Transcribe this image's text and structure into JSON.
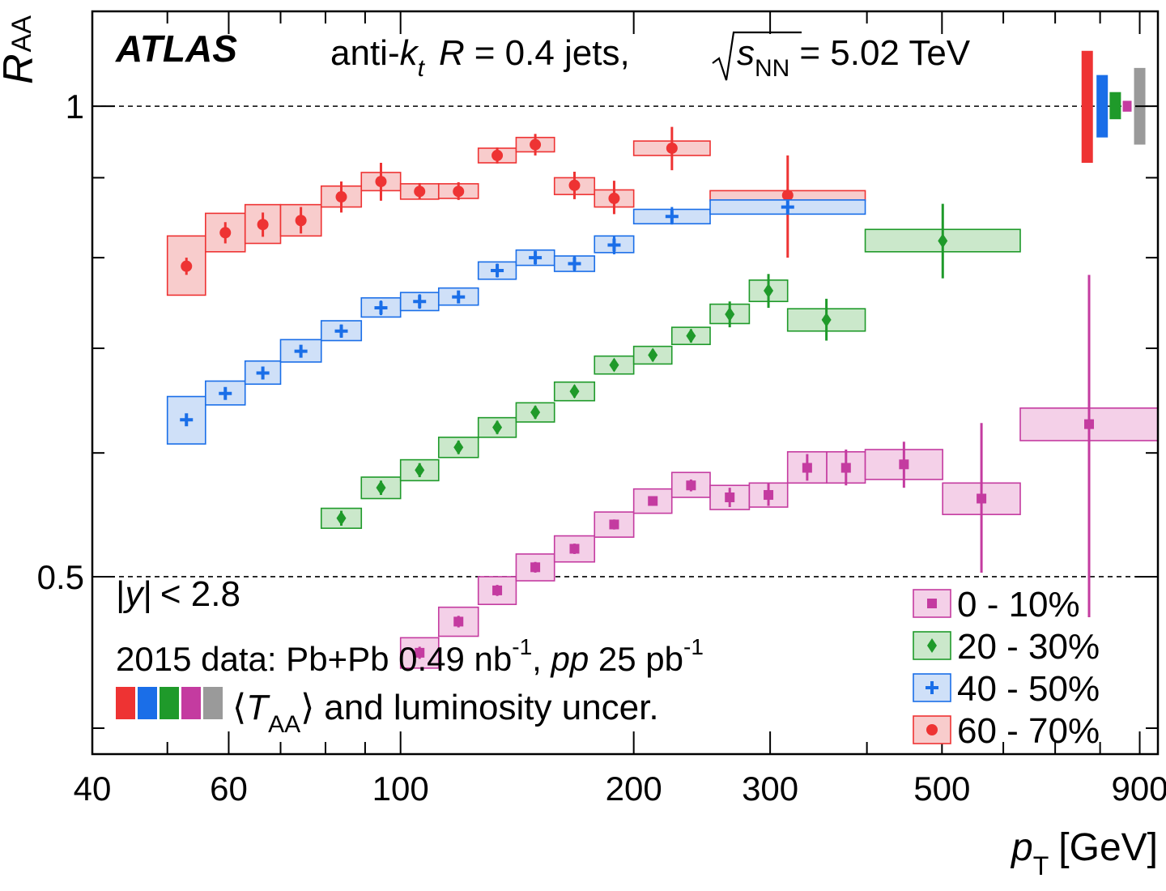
{
  "chart_data": {
    "type": "scatter",
    "x_scale": "log",
    "y_scale": "log",
    "xlim": [
      40,
      950
    ],
    "ylim": [
      0.385,
      1.15
    ],
    "x_ticks": [
      40,
      60,
      100,
      200,
      300,
      500,
      900
    ],
    "x_minor_ticks": [
      50,
      70,
      80,
      90,
      400,
      600,
      700,
      800
    ],
    "y_ticks": [
      0.5,
      1
    ],
    "y_minor_ticks": [
      0.4,
      0.6,
      0.7,
      0.8,
      0.9
    ],
    "dashed_lines_y": [
      0.5,
      1
    ],
    "grid": false,
    "xlabel": {
      "p": "p",
      "sub": "T",
      "unit": "[GeV]"
    },
    "ylabel": {
      "main": "R",
      "sub": "AA"
    },
    "title": {
      "brand": "ATLAS",
      "pre": "anti-",
      "k": "k",
      "k_sub": "t",
      "R": "R",
      "eq_r": "= 0.4 jets,",
      "s": "s",
      "s_sub": "NN",
      "energy": "= 5.02 TeV"
    },
    "annotations": {
      "rapidity": {
        "bar1": "|",
        "y": "y",
        "bar2": "|",
        "cut": "< 2.8"
      },
      "dataset": {
        "text1": "2015 data: Pb+Pb 0.49 nb",
        "sup1": "-1",
        "text2": ", ",
        "pp": "pp",
        "text3": " 25 pb",
        "sup2": "-1"
      },
      "uncertainty": {
        "open": "⟨",
        "T": "T",
        "sub": "AA",
        "close": "⟩",
        "rest": "and luminosity uncer."
      }
    },
    "legend_position": "bottom-right",
    "series": [
      {
        "name": "60 - 70%",
        "line_color": "#ee3333",
        "fill_color": "#f8cccc",
        "marker": "circle",
        "points": [
          {
            "xlo": 50,
            "xhi": 56,
            "y": 0.79,
            "syst_lo": 0.757,
            "syst_hi": 0.826,
            "stat_lo": 0.78,
            "stat_hi": 0.8
          },
          {
            "xlo": 56,
            "xhi": 63,
            "y": 0.83,
            "syst_lo": 0.807,
            "syst_hi": 0.854,
            "stat_lo": 0.817,
            "stat_hi": 0.843
          },
          {
            "xlo": 63,
            "xhi": 70,
            "y": 0.84,
            "syst_lo": 0.817,
            "syst_hi": 0.865,
            "stat_lo": 0.825,
            "stat_hi": 0.855
          },
          {
            "xlo": 70,
            "xhi": 79,
            "y": 0.845,
            "syst_lo": 0.826,
            "syst_hi": 0.865,
            "stat_lo": 0.829,
            "stat_hi": 0.862
          },
          {
            "xlo": 79,
            "xhi": 89,
            "y": 0.875,
            "syst_lo": 0.862,
            "syst_hi": 0.889,
            "stat_lo": 0.855,
            "stat_hi": 0.895
          },
          {
            "xlo": 89,
            "xhi": 100,
            "y": 0.895,
            "syst_lo": 0.883,
            "syst_hi": 0.907,
            "stat_lo": 0.87,
            "stat_hi": 0.92
          },
          {
            "xlo": 100,
            "xhi": 112,
            "y": 0.882,
            "syst_lo": 0.872,
            "syst_hi": 0.892,
            "stat_lo": 0.872,
            "stat_hi": 0.893
          },
          {
            "xlo": 112,
            "xhi": 126,
            "y": 0.882,
            "syst_lo": 0.873,
            "syst_hi": 0.892,
            "stat_lo": 0.871,
            "stat_hi": 0.894
          },
          {
            "xlo": 126,
            "xhi": 141,
            "y": 0.93,
            "syst_lo": 0.92,
            "syst_hi": 0.94,
            "stat_lo": 0.919,
            "stat_hi": 0.941
          },
          {
            "xlo": 141,
            "xhi": 158,
            "y": 0.945,
            "syst_lo": 0.935,
            "syst_hi": 0.955,
            "stat_lo": 0.93,
            "stat_hi": 0.96
          },
          {
            "xlo": 158,
            "xhi": 178,
            "y": 0.89,
            "syst_lo": 0.878,
            "syst_hi": 0.9,
            "stat_lo": 0.872,
            "stat_hi": 0.908
          },
          {
            "xlo": 178,
            "xhi": 200,
            "y": 0.873,
            "syst_lo": 0.862,
            "syst_hi": 0.884,
            "stat_lo": 0.853,
            "stat_hi": 0.896
          },
          {
            "xlo": 200,
            "xhi": 251,
            "y": 0.94,
            "syst_lo": 0.93,
            "syst_hi": 0.95,
            "stat_lo": 0.91,
            "stat_hi": 0.97
          },
          {
            "xlo": 251,
            "xhi": 398,
            "y": 0.877,
            "syst_lo": 0.87,
            "syst_hi": 0.883,
            "stat_lo": 0.8,
            "stat_hi": 0.93
          }
        ]
      },
      {
        "name": "40 - 50%",
        "line_color": "#1a6ee8",
        "fill_color": "#cfe0f8",
        "marker": "cross",
        "points": [
          {
            "xlo": 50,
            "xhi": 56,
            "y": 0.63,
            "syst_lo": 0.608,
            "syst_hi": 0.652,
            "stat_lo": 0.625,
            "stat_hi": 0.635
          },
          {
            "xlo": 56,
            "xhi": 63,
            "y": 0.655,
            "syst_lo": 0.644,
            "syst_hi": 0.667,
            "stat_lo": 0.649,
            "stat_hi": 0.661
          },
          {
            "xlo": 63,
            "xhi": 70,
            "y": 0.675,
            "syst_lo": 0.664,
            "syst_hi": 0.687,
            "stat_lo": 0.669,
            "stat_hi": 0.681
          },
          {
            "xlo": 70,
            "xhi": 79,
            "y": 0.697,
            "syst_lo": 0.686,
            "syst_hi": 0.709,
            "stat_lo": 0.691,
            "stat_hi": 0.703
          },
          {
            "xlo": 79,
            "xhi": 89,
            "y": 0.718,
            "syst_lo": 0.708,
            "syst_hi": 0.729,
            "stat_lo": 0.711,
            "stat_hi": 0.725
          },
          {
            "xlo": 89,
            "xhi": 100,
            "y": 0.743,
            "syst_lo": 0.733,
            "syst_hi": 0.754,
            "stat_lo": 0.735,
            "stat_hi": 0.751
          },
          {
            "xlo": 100,
            "xhi": 112,
            "y": 0.75,
            "syst_lo": 0.74,
            "syst_hi": 0.76,
            "stat_lo": 0.742,
            "stat_hi": 0.758
          },
          {
            "xlo": 112,
            "xhi": 126,
            "y": 0.755,
            "syst_lo": 0.746,
            "syst_hi": 0.765,
            "stat_lo": 0.748,
            "stat_hi": 0.762
          },
          {
            "xlo": 126,
            "xhi": 141,
            "y": 0.785,
            "syst_lo": 0.775,
            "syst_hi": 0.795,
            "stat_lo": 0.777,
            "stat_hi": 0.793
          },
          {
            "xlo": 141,
            "xhi": 158,
            "y": 0.8,
            "syst_lo": 0.791,
            "syst_hi": 0.809,
            "stat_lo": 0.792,
            "stat_hi": 0.808
          },
          {
            "xlo": 158,
            "xhi": 178,
            "y": 0.793,
            "syst_lo": 0.784,
            "syst_hi": 0.802,
            "stat_lo": 0.784,
            "stat_hi": 0.802
          },
          {
            "xlo": 178,
            "xhi": 200,
            "y": 0.815,
            "syst_lo": 0.806,
            "syst_hi": 0.826,
            "stat_lo": 0.804,
            "stat_hi": 0.826
          },
          {
            "xlo": 200,
            "xhi": 251,
            "y": 0.85,
            "syst_lo": 0.841,
            "syst_hi": 0.859,
            "stat_lo": 0.84,
            "stat_hi": 0.862
          },
          {
            "xlo": 251,
            "xhi": 398,
            "y": 0.862,
            "syst_lo": 0.853,
            "syst_hi": 0.871,
            "stat_lo": 0.857,
            "stat_hi": 0.867
          }
        ]
      },
      {
        "name": "20 - 30%",
        "line_color": "#1f9a2a",
        "fill_color": "#cbe8cb",
        "marker": "diamond",
        "points": [
          {
            "xlo": 79,
            "xhi": 89,
            "y": 0.545,
            "syst_lo": 0.537,
            "syst_hi": 0.553,
            "stat_lo": 0.539,
            "stat_hi": 0.551
          },
          {
            "xlo": 89,
            "xhi": 100,
            "y": 0.57,
            "syst_lo": 0.561,
            "syst_hi": 0.579,
            "stat_lo": 0.564,
            "stat_hi": 0.576
          },
          {
            "xlo": 100,
            "xhi": 112,
            "y": 0.585,
            "syst_lo": 0.576,
            "syst_hi": 0.594,
            "stat_lo": 0.579,
            "stat_hi": 0.591
          },
          {
            "xlo": 112,
            "xhi": 126,
            "y": 0.605,
            "syst_lo": 0.596,
            "syst_hi": 0.614,
            "stat_lo": 0.599,
            "stat_hi": 0.611
          },
          {
            "xlo": 126,
            "xhi": 141,
            "y": 0.623,
            "syst_lo": 0.614,
            "syst_hi": 0.632,
            "stat_lo": 0.617,
            "stat_hi": 0.629
          },
          {
            "xlo": 141,
            "xhi": 158,
            "y": 0.637,
            "syst_lo": 0.628,
            "syst_hi": 0.646,
            "stat_lo": 0.631,
            "stat_hi": 0.643
          },
          {
            "xlo": 158,
            "xhi": 178,
            "y": 0.657,
            "syst_lo": 0.648,
            "syst_hi": 0.666,
            "stat_lo": 0.651,
            "stat_hi": 0.663
          },
          {
            "xlo": 178,
            "xhi": 200,
            "y": 0.683,
            "syst_lo": 0.674,
            "syst_hi": 0.692,
            "stat_lo": 0.677,
            "stat_hi": 0.689
          },
          {
            "xlo": 200,
            "xhi": 224,
            "y": 0.693,
            "syst_lo": 0.684,
            "syst_hi": 0.702,
            "stat_lo": 0.687,
            "stat_hi": 0.699
          },
          {
            "xlo": 224,
            "xhi": 251,
            "y": 0.713,
            "syst_lo": 0.704,
            "syst_hi": 0.722,
            "stat_lo": 0.706,
            "stat_hi": 0.72
          },
          {
            "xlo": 251,
            "xhi": 282,
            "y": 0.736,
            "syst_lo": 0.726,
            "syst_hi": 0.747,
            "stat_lo": 0.722,
            "stat_hi": 0.75
          },
          {
            "xlo": 282,
            "xhi": 316,
            "y": 0.762,
            "syst_lo": 0.75,
            "syst_hi": 0.774,
            "stat_lo": 0.743,
            "stat_hi": 0.781
          },
          {
            "xlo": 316,
            "xhi": 398,
            "y": 0.73,
            "syst_lo": 0.718,
            "syst_hi": 0.742,
            "stat_lo": 0.708,
            "stat_hi": 0.753
          },
          {
            "xlo": 398,
            "xhi": 631,
            "y": 0.82,
            "syst_lo": 0.807,
            "syst_hi": 0.834,
            "stat_lo": 0.776,
            "stat_hi": 0.866
          }
        ]
      },
      {
        "name": "0 - 10%",
        "line_color": "#c43ba0",
        "fill_color": "#f4d0e8",
        "marker": "square",
        "points": [
          {
            "xlo": 100,
            "xhi": 112,
            "y": 0.447,
            "syst_lo": 0.437,
            "syst_hi": 0.457,
            "stat_lo": 0.443,
            "stat_hi": 0.451
          },
          {
            "xlo": 112,
            "xhi": 126,
            "y": 0.468,
            "syst_lo": 0.458,
            "syst_hi": 0.478,
            "stat_lo": 0.464,
            "stat_hi": 0.472
          },
          {
            "xlo": 126,
            "xhi": 141,
            "y": 0.49,
            "syst_lo": 0.48,
            "syst_hi": 0.5,
            "stat_lo": 0.486,
            "stat_hi": 0.494
          },
          {
            "xlo": 141,
            "xhi": 158,
            "y": 0.507,
            "syst_lo": 0.497,
            "syst_hi": 0.517,
            "stat_lo": 0.503,
            "stat_hi": 0.511
          },
          {
            "xlo": 158,
            "xhi": 178,
            "y": 0.521,
            "syst_lo": 0.511,
            "syst_hi": 0.531,
            "stat_lo": 0.517,
            "stat_hi": 0.525
          },
          {
            "xlo": 178,
            "xhi": 200,
            "y": 0.54,
            "syst_lo": 0.53,
            "syst_hi": 0.55,
            "stat_lo": 0.536,
            "stat_hi": 0.544
          },
          {
            "xlo": 200,
            "xhi": 224,
            "y": 0.559,
            "syst_lo": 0.549,
            "syst_hi": 0.569,
            "stat_lo": 0.555,
            "stat_hi": 0.563
          },
          {
            "xlo": 224,
            "xhi": 251,
            "y": 0.572,
            "syst_lo": 0.562,
            "syst_hi": 0.583,
            "stat_lo": 0.567,
            "stat_hi": 0.577
          },
          {
            "xlo": 251,
            "xhi": 282,
            "y": 0.562,
            "syst_lo": 0.552,
            "syst_hi": 0.572,
            "stat_lo": 0.554,
            "stat_hi": 0.57
          },
          {
            "xlo": 282,
            "xhi": 316,
            "y": 0.564,
            "syst_lo": 0.554,
            "syst_hi": 0.574,
            "stat_lo": 0.555,
            "stat_hi": 0.574
          },
          {
            "xlo": 316,
            "xhi": 355,
            "y": 0.587,
            "syst_lo": 0.574,
            "syst_hi": 0.601,
            "stat_lo": 0.576,
            "stat_hi": 0.599
          },
          {
            "xlo": 355,
            "xhi": 398,
            "y": 0.587,
            "syst_lo": 0.574,
            "syst_hi": 0.601,
            "stat_lo": 0.572,
            "stat_hi": 0.603
          },
          {
            "xlo": 398,
            "xhi": 501,
            "y": 0.59,
            "syst_lo": 0.577,
            "syst_hi": 0.603,
            "stat_lo": 0.57,
            "stat_hi": 0.61
          },
          {
            "xlo": 501,
            "xhi": 631,
            "y": 0.561,
            "syst_lo": 0.548,
            "syst_hi": 0.574,
            "stat_lo": 0.503,
            "stat_hi": 0.627
          },
          {
            "xlo": 631,
            "xhi": 950,
            "y": 0.626,
            "syst_lo": 0.611,
            "syst_hi": 0.641,
            "stat_lo": 0.471,
            "stat_hi": 0.78
          }
        ]
      }
    ],
    "norm_bars": [
      {
        "name": "60 - 70%",
        "color": "#ee3333",
        "x": 770,
        "lo": 0.92,
        "hi": 1.085
      },
      {
        "name": "40 - 50%",
        "color": "#1a6ee8",
        "x": 805,
        "lo": 0.955,
        "hi": 1.047
      },
      {
        "name": "20 - 30%",
        "color": "#1f9a2a",
        "x": 837,
        "lo": 0.981,
        "hi": 1.021
      },
      {
        "name": "0 - 10%",
        "color": "#c43ba0",
        "x": 867,
        "lo": 0.992,
        "hi": 1.008
      },
      {
        "name": "pp luminosity",
        "color": "#9a9a9a",
        "x": 900,
        "lo": 0.945,
        "hi": 1.058
      }
    ],
    "legend_entries": [
      {
        "label": "0 - 10%",
        "series": "0 - 10%"
      },
      {
        "label": "20 - 30%",
        "series": "20 - 30%"
      },
      {
        "label": "40 - 50%",
        "series": "40 - 50%"
      },
      {
        "label": "60 - 70%",
        "series": "60 - 70%"
      }
    ],
    "uncertainty_swatches": [
      "#ee3333",
      "#1a6ee8",
      "#1f9a2a",
      "#c43ba0",
      "#9a9a9a"
    ]
  }
}
